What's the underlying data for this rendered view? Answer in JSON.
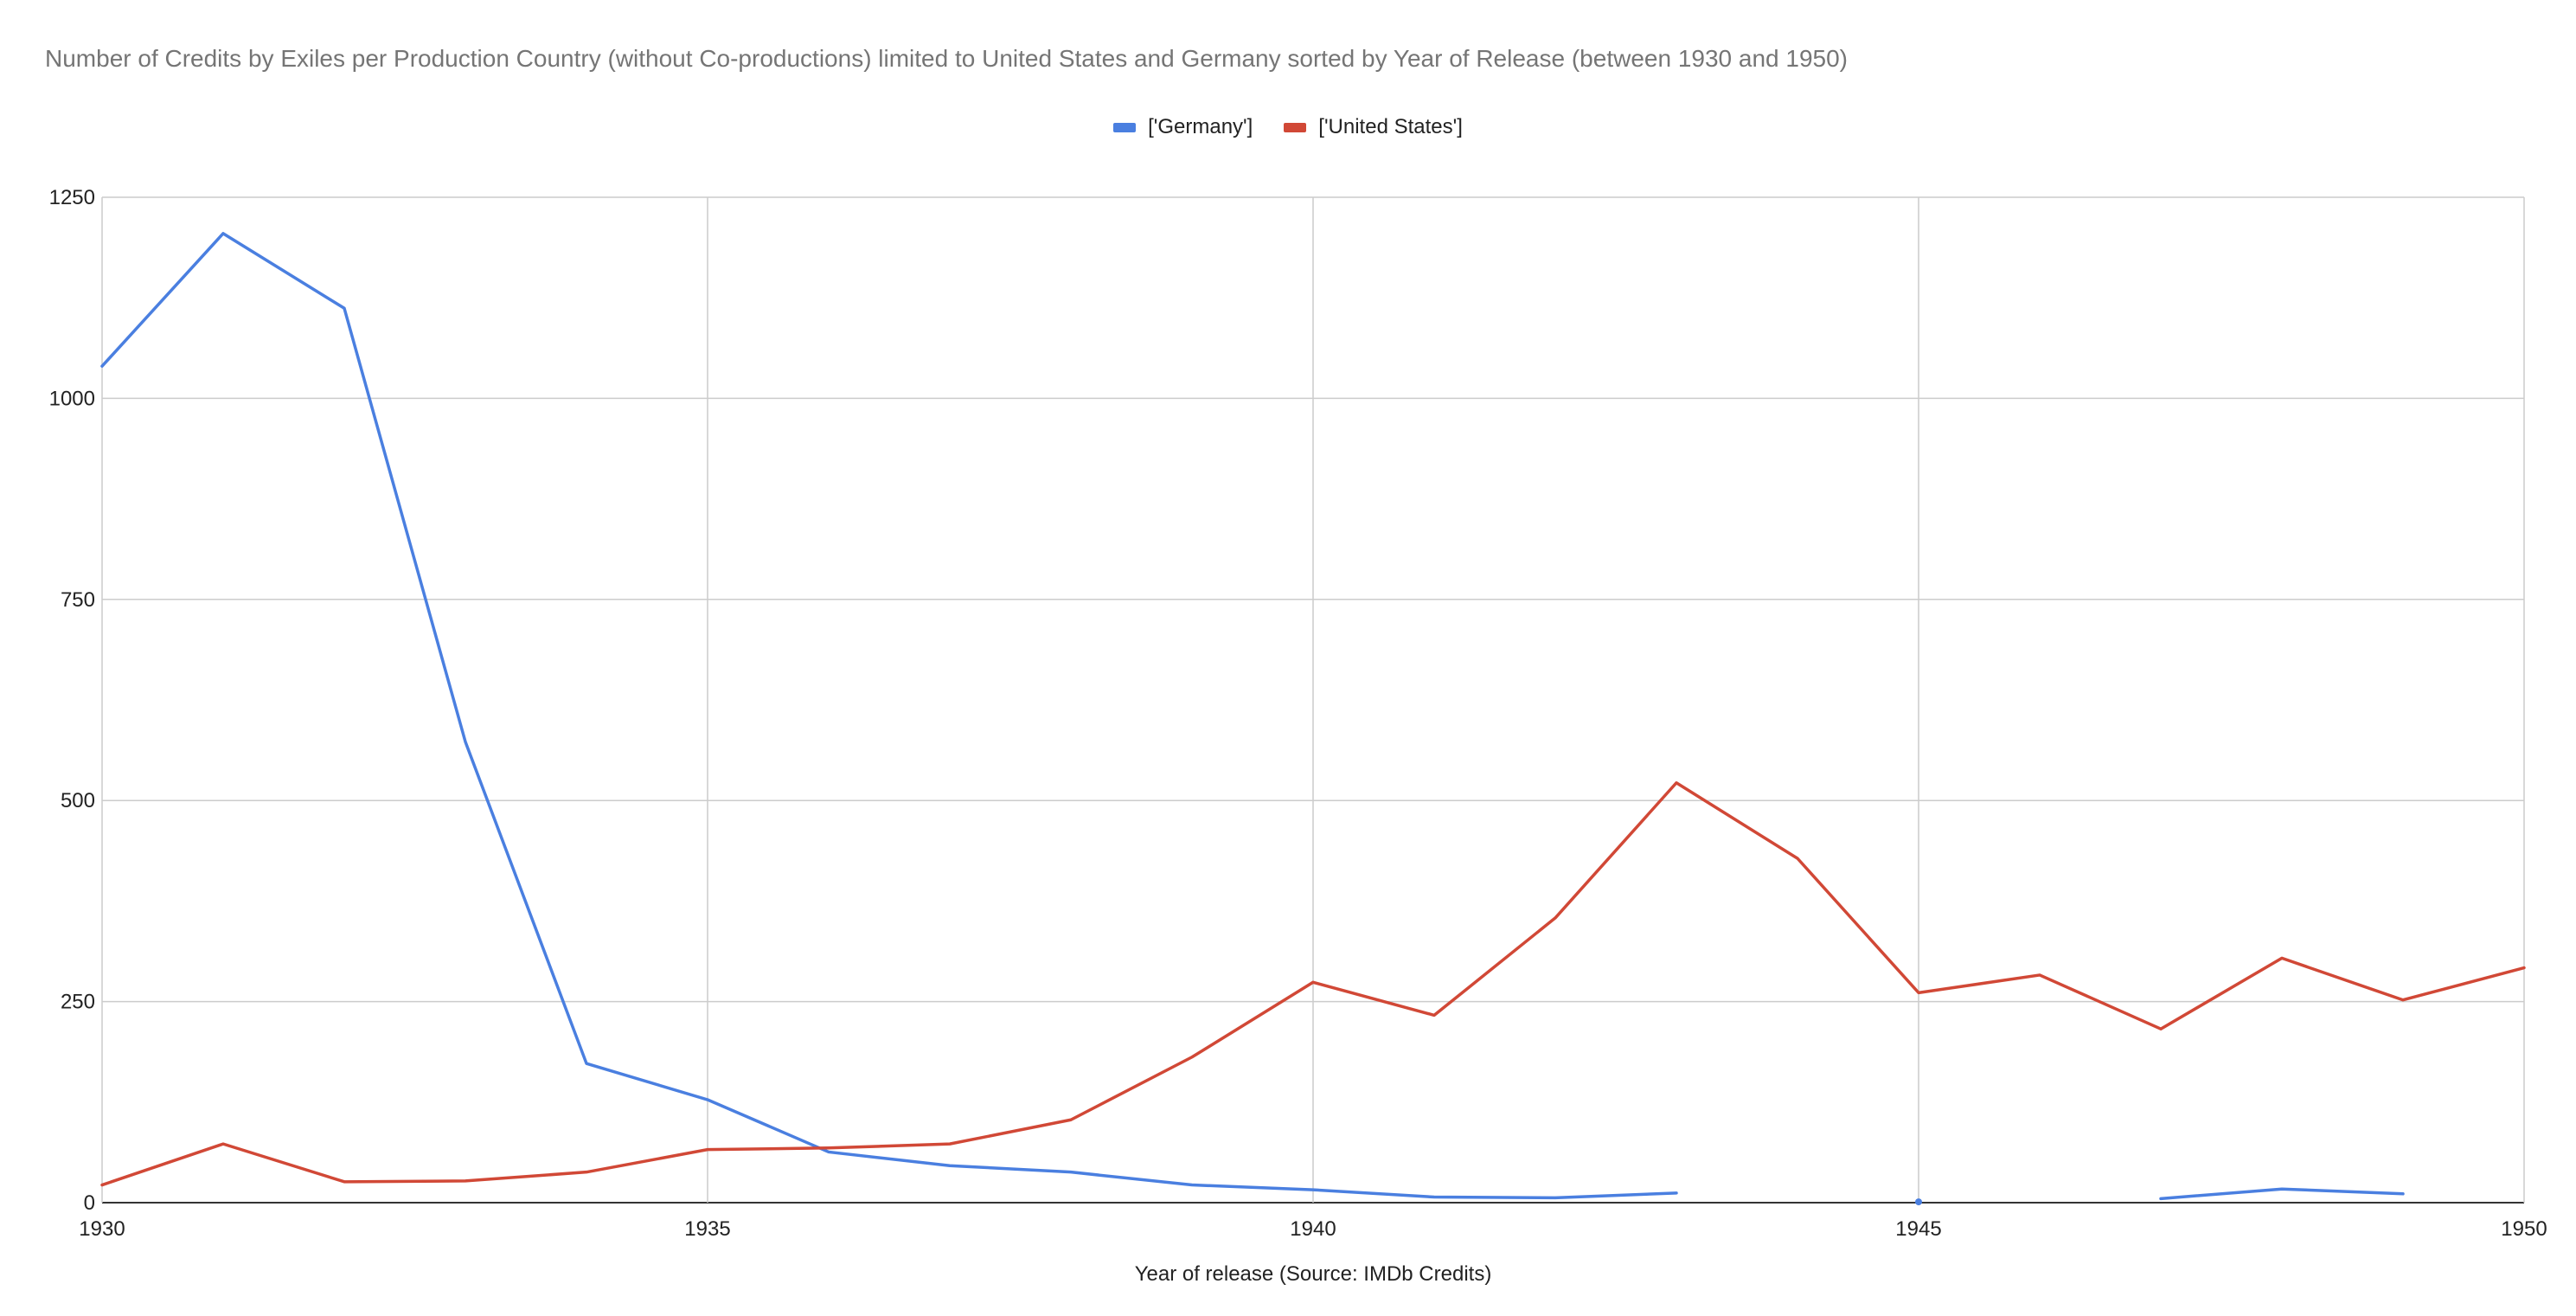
{
  "chart_data": {
    "type": "line",
    "title": "Number of Credits by Exiles per Production Country (without Co-productions) limited to United States and Germany sorted by Year of Release (between 1930 and 1950)",
    "xlabel": "Year of release (Source: IMDb Credits)",
    "ylabel": "",
    "xlim": [
      1930,
      1950
    ],
    "ylim": [
      0,
      1250
    ],
    "x_ticks": [
      1930,
      1935,
      1940,
      1945,
      1950
    ],
    "y_ticks": [
      0,
      250,
      500,
      750,
      1000,
      1250
    ],
    "grid": true,
    "legend_position": "top-center",
    "x": [
      1930,
      1931,
      1932,
      1933,
      1934,
      1935,
      1936,
      1937,
      1938,
      1939,
      1940,
      1941,
      1942,
      1943,
      1944,
      1945,
      1946,
      1947,
      1948,
      1949,
      1950
    ],
    "series": [
      {
        "name": "['Germany']",
        "color": "#4a7fe0",
        "values": [
          1040,
          1205,
          1112,
          573,
          173,
          128,
          63,
          46,
          38,
          22,
          16,
          7,
          6,
          12,
          null,
          1,
          null,
          5,
          17,
          11,
          null
        ]
      },
      {
        "name": "['United States']",
        "color": "#d14836",
        "values": [
          22,
          73,
          26,
          27,
          38,
          66,
          68,
          73,
          103,
          181,
          274,
          233,
          354,
          522,
          428,
          261,
          283,
          216,
          304,
          252,
          292
        ]
      }
    ]
  }
}
